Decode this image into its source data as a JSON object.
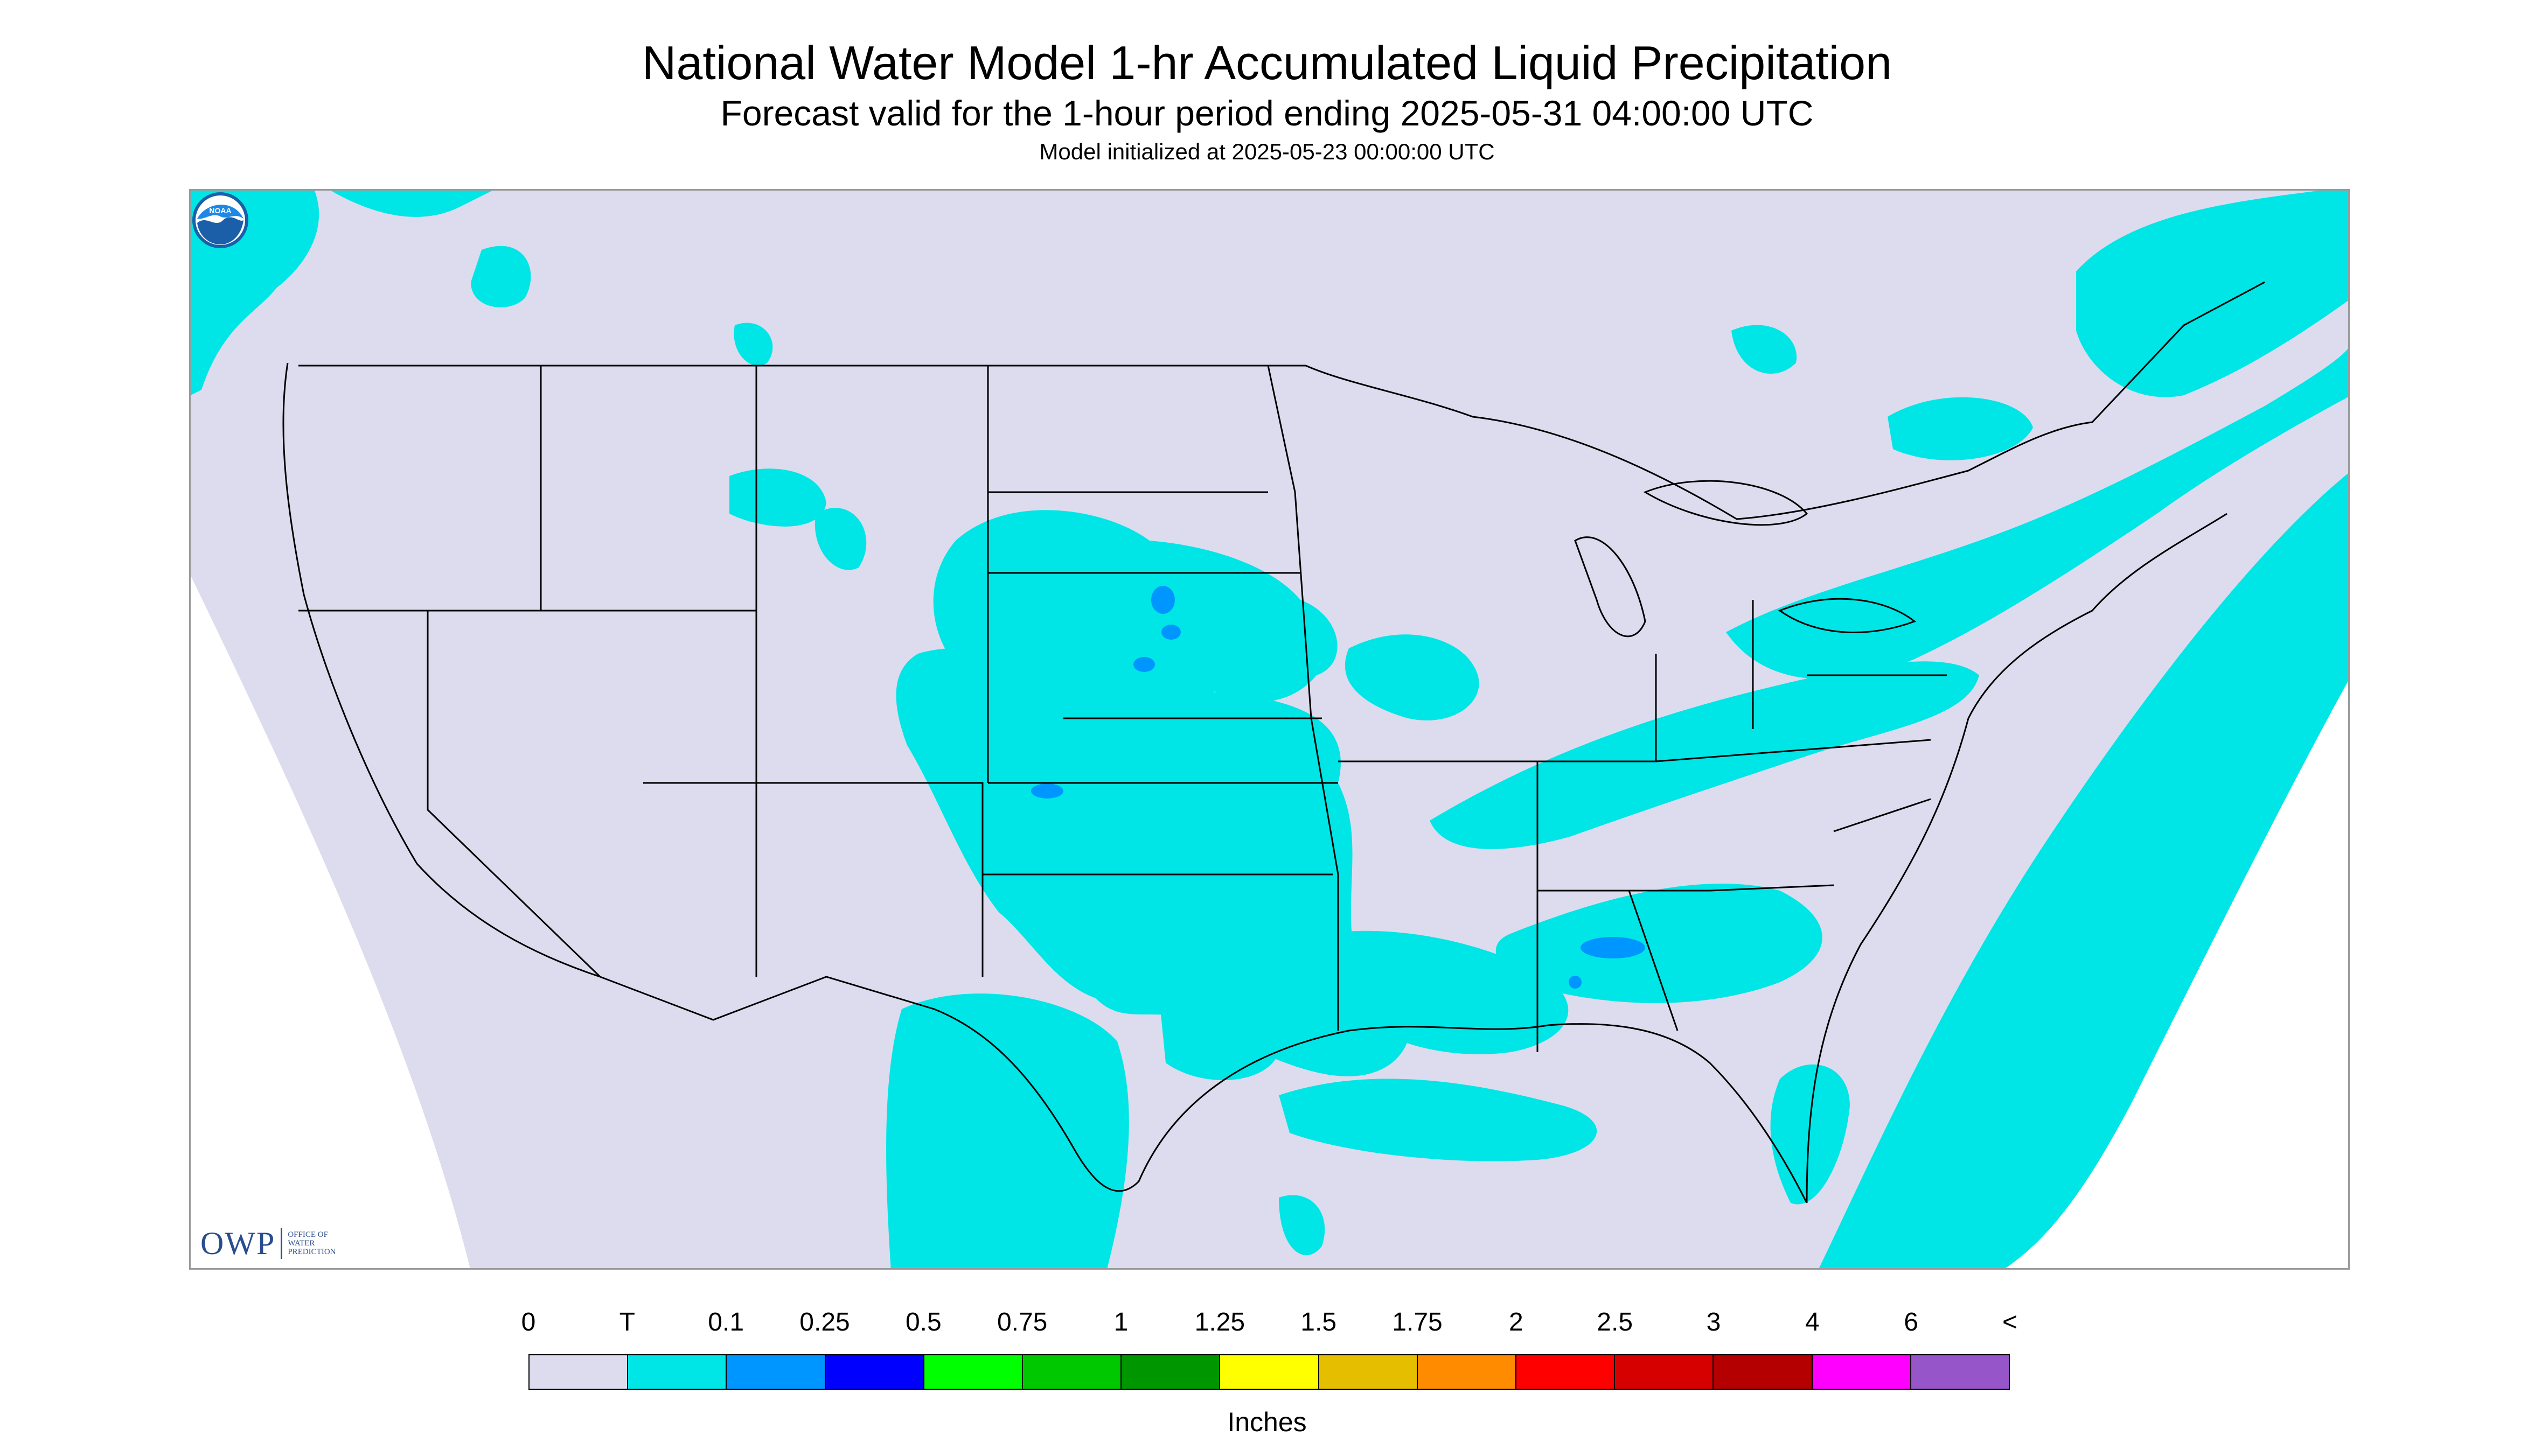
{
  "title": "National Water Model 1-hr Accumulated Liquid Precipitation",
  "subtitle": "Forecast valid for the 1-hour period ending 2025-05-31 04:00:00 UTC",
  "init_line": "Model initialized at 2025-05-23 00:00:00 UTC",
  "map": {
    "region": "CONUS",
    "projection": "Lambert Conformal",
    "background_color": "#dcdcee",
    "outside_domain_color": "#ffffff",
    "boundary_color": "#000000"
  },
  "logos": {
    "owp_mark": "OWP",
    "owp_text": [
      "Office of",
      "Water",
      "Prediction"
    ],
    "noaa_text": "NOAA"
  },
  "colorbar": {
    "labels": [
      "0",
      "T",
      "0.1",
      "0.25",
      "0.5",
      "0.75",
      "1",
      "1.25",
      "1.5",
      "1.75",
      "2",
      "2.5",
      "3",
      "4",
      "6",
      "<"
    ],
    "colors": [
      "#dcdcee",
      "#00e6e6",
      "#0096ff",
      "#0000ff",
      "#00ff00",
      "#00c800",
      "#009600",
      "#ffff00",
      "#e6be00",
      "#ff8c00",
      "#ff0000",
      "#d70000",
      "#b40000",
      "#ff00ff",
      "#9655c8"
    ],
    "units": "Inches"
  },
  "precip_observed_bins": [
    "T",
    "0.1"
  ],
  "trace_color": "#00e6e6",
  "light_color": "#0096ff"
}
